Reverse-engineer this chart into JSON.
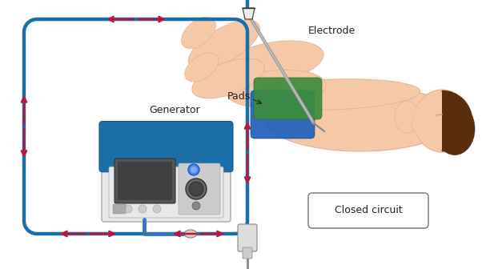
{
  "bg_color": "#ffffff",
  "circuit_color": "#1a6fa8",
  "arrow_color": "#c0143c",
  "skin_color": "#f5c9a8",
  "skin_dark": "#e8b090",
  "skin_shadow": "#d9a070",
  "hair_color": "#5a2d0c",
  "pad_blue": "#2060bb",
  "pad_green": "#3d8c3d",
  "gen_gray_light": "#e8e8e8",
  "gen_gray": "#cccccc",
  "gen_gray_dark": "#aaaaaa",
  "gen_blue": "#1a6fa8",
  "gen_blue_dark": "#145a90",
  "screen_color": "#555555",
  "screen_inner": "#444444",
  "circuit_lw": 3.2,
  "label_electrode": "Electrode",
  "label_generator": "Generator",
  "label_pads": "Pads",
  "label_circuit": "Closed circuit",
  "figsize": [
    6.02,
    3.36
  ],
  "dpi": 100
}
